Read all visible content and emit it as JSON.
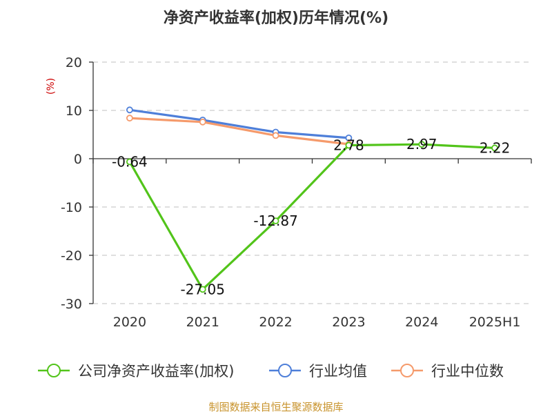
{
  "chart_data": {
    "type": "line",
    "title": "净资产收益率(加权)历年情况(%)",
    "ylabel": "(%)",
    "xlabel": "",
    "categories": [
      "2020",
      "2021",
      "2022",
      "2023",
      "2024",
      "2025H1"
    ],
    "ylim": [
      -30,
      20
    ],
    "yticks": [
      20,
      10,
      0,
      -10,
      -20,
      -30
    ],
    "grid": true,
    "legend_position": "bottom",
    "series": [
      {
        "name": "公司净资产收益率(加权)",
        "color": "#52c41a",
        "values": [
          -0.64,
          -27.05,
          -12.87,
          2.78,
          2.97,
          2.22
        ],
        "labels": [
          "-0.64",
          "-27.05",
          "-12.87",
          "2.78",
          "2.97",
          "2.22"
        ]
      },
      {
        "name": "行业均值",
        "color": "#4e7fd9",
        "values": [
          10.1,
          8.0,
          5.5,
          4.3,
          null,
          null
        ]
      },
      {
        "name": "行业中位数",
        "color": "#f59a6b",
        "values": [
          8.4,
          7.6,
          4.8,
          3.0,
          null,
          null
        ]
      }
    ],
    "source": "制图数据来自恒生聚源数据库"
  }
}
